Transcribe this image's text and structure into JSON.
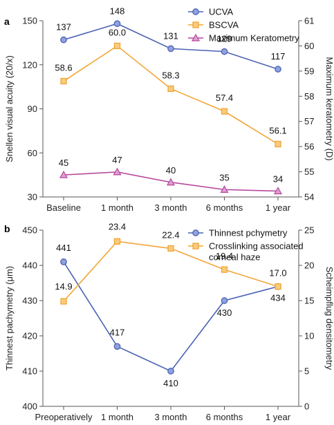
{
  "chart_data": [
    {
      "panel": "a",
      "type": "line",
      "categories": [
        "Baseline",
        "1 month",
        "3 month",
        "6 months",
        "1 year"
      ],
      "ylabel_left": "Snellen visual acuity (20/x)",
      "ylabel_right": "Maximum keratometry (D)",
      "ylim_left": [
        30,
        150
      ],
      "yticks_left": [
        "30",
        "60",
        "90",
        "120",
        "150"
      ],
      "ylim_right": [
        54,
        61
      ],
      "yticks_right": [
        "54",
        "55",
        "56",
        "57",
        "58",
        "59",
        "60",
        "61"
      ],
      "legend_position": "top-right",
      "series": [
        {
          "name": "UCVA",
          "axis": "left",
          "color": "#4a62b5",
          "marker": "circle",
          "values": [
            137,
            148,
            131,
            129,
            117
          ],
          "labels": [
            "137",
            "148",
            "131",
            "129",
            "117"
          ]
        },
        {
          "name": "BSCVA",
          "axis": "right",
          "color": "#f2a535",
          "marker": "square",
          "values": [
            58.6,
            60.0,
            58.3,
            57.4,
            56.1
          ],
          "labels": [
            "58.6",
            "60.0",
            "58.3",
            "57.4",
            "56.1"
          ]
        },
        {
          "name": "Maximum Keratometry",
          "axis": "left",
          "color": "#b5459b",
          "marker": "triangle",
          "values": [
            45,
            47,
            40,
            35,
            34
          ],
          "labels": [
            "45",
            "47",
            "40",
            "35",
            "34"
          ]
        }
      ]
    },
    {
      "panel": "b",
      "type": "line",
      "categories": [
        "Preoperatively",
        "1 month",
        "3 month",
        "6 months",
        "1 year"
      ],
      "ylabel_left": "Thinnest pachymetry (μm)",
      "ylabel_right": "Scheimpflug densitometry",
      "ylim_left": [
        400,
        450
      ],
      "yticks_left": [
        "400",
        "410",
        "420",
        "430",
        "440",
        "450"
      ],
      "ylim_right": [
        0,
        25
      ],
      "yticks_right": [
        "0",
        "5",
        "10",
        "15",
        "20",
        "25"
      ],
      "legend_position": "top-right",
      "series": [
        {
          "name": "Thinnest pchymetry",
          "axis": "left",
          "color": "#4a62b5",
          "marker": "circle",
          "values": [
            441,
            417,
            410,
            430,
            434
          ],
          "labels": [
            "441",
            "417",
            "410",
            "430",
            "434"
          ]
        },
        {
          "name": "Crosslinking associated corneal haze",
          "legend_lines": [
            "Crosslinking associated",
            "corneal haze"
          ],
          "axis": "right",
          "color": "#f2a535",
          "marker": "square",
          "values": [
            14.9,
            23.4,
            22.4,
            19.4,
            17.0
          ],
          "labels": [
            "14.9",
            "23.4",
            "22.4",
            "19.4",
            "17.0"
          ]
        }
      ]
    }
  ]
}
